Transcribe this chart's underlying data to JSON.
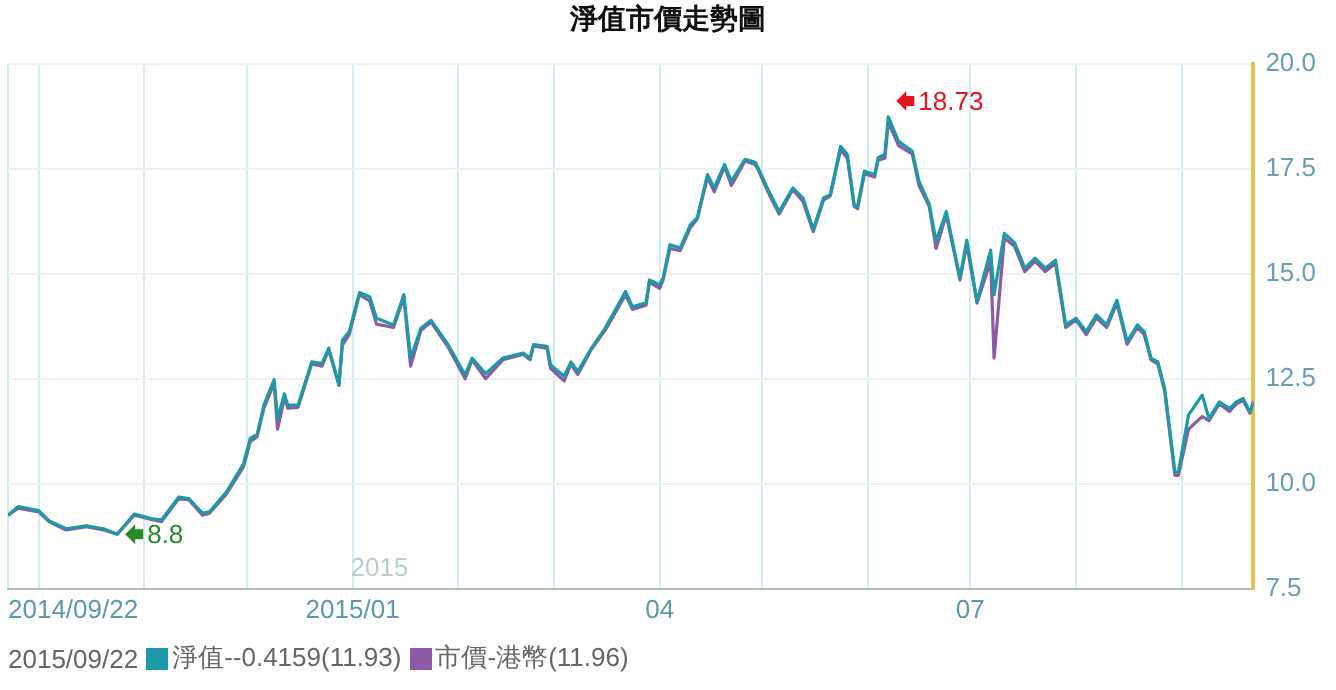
{
  "chart_data": {
    "type": "line",
    "title": "淨值市價走勢圖",
    "legend_title": "2015/09/22",
    "legend": "bottom",
    "grid": true,
    "marker": "none",
    "line_style": "solid",
    "x": [
      "2014-09-22",
      "2014-09-25",
      "2014-10-01",
      "2014-10-04",
      "2014-10-09",
      "2014-10-15",
      "2014-10-20",
      "2014-10-24",
      "2014-10-29",
      "2014-11-03",
      "2014-11-06",
      "2014-11-11",
      "2014-11-14",
      "2014-11-18",
      "2014-11-20",
      "2014-11-25",
      "2014-11-30",
      "2014-12-02",
      "2014-12-04",
      "2014-12-06",
      "2014-12-09",
      "2014-12-10",
      "2014-12-12",
      "2014-12-13",
      "2014-12-16",
      "2014-12-20",
      "2014-12-23",
      "2014-12-25",
      "2014-12-28",
      "2014-12-29",
      "2014-12-31",
      "2015-01-03",
      "2015-01-06",
      "2015-01-08",
      "2015-01-13",
      "2015-01-16",
      "2015-01-18",
      "2015-01-21",
      "2015-01-24",
      "2015-01-29",
      "2015-02-03",
      "2015-02-05",
      "2015-02-09",
      "2015-02-14",
      "2015-02-20",
      "2015-02-22",
      "2015-02-23",
      "2015-02-27",
      "2015-02-28",
      "2015-03-04",
      "2015-03-06",
      "2015-03-08",
      "2015-03-12",
      "2015-03-16",
      "2015-03-22",
      "2015-03-24",
      "2015-03-28",
      "2015-03-29",
      "2015-04-01",
      "2015-04-02",
      "2015-04-04",
      "2015-04-07",
      "2015-04-10",
      "2015-04-12",
      "2015-04-15",
      "2015-04-17",
      "2015-04-20",
      "2015-04-22",
      "2015-04-26",
      "2015-04-29",
      "2015-04-30",
      "2015-05-03",
      "2015-05-06",
      "2015-05-10",
      "2015-05-13",
      "2015-05-16",
      "2015-05-19",
      "2015-05-21",
      "2015-05-24",
      "2015-05-26",
      "2015-05-28",
      "2015-05-29",
      "2015-05-31",
      "2015-06-03",
      "2015-06-04",
      "2015-06-06",
      "2015-06-07",
      "2015-06-10",
      "2015-06-14",
      "2015-06-16",
      "2015-06-19",
      "2015-06-21",
      "2015-06-24",
      "2015-06-28",
      "2015-06-30",
      "2015-07-03",
      "2015-07-07",
      "2015-07-08",
      "2015-07-11",
      "2015-07-14",
      "2015-07-17",
      "2015-07-20",
      "2015-07-23",
      "2015-07-26",
      "2015-07-29",
      "2015-08-01",
      "2015-08-04",
      "2015-08-07",
      "2015-08-10",
      "2015-08-13",
      "2015-08-16",
      "2015-08-19",
      "2015-08-21",
      "2015-08-23",
      "2015-08-25",
      "2015-08-27",
      "2015-08-30",
      "2015-08-31",
      "2015-09-03",
      "2015-09-07",
      "2015-09-09",
      "2015-09-12",
      "2015-09-15",
      "2015-09-17",
      "2015-09-19",
      "2015-09-21",
      "2015-09-22"
    ],
    "series": [
      {
        "name": "淨值--0.4159(11.93)",
        "color": "#1e9aa6",
        "values": [
          9.25,
          9.46,
          9.36,
          9.12,
          8.93,
          9.0,
          8.93,
          8.8,
          9.28,
          9.17,
          9.14,
          9.68,
          9.65,
          9.3,
          9.33,
          9.8,
          10.47,
          11.08,
          11.17,
          11.87,
          12.48,
          11.55,
          12.14,
          11.87,
          11.87,
          12.9,
          12.86,
          13.23,
          12.35,
          13.42,
          13.62,
          14.55,
          14.45,
          13.94,
          13.78,
          14.5,
          12.99,
          13.7,
          13.89,
          13.31,
          12.59,
          12.99,
          12.62,
          12.99,
          13.11,
          12.99,
          13.31,
          13.27,
          12.83,
          12.56,
          12.9,
          12.67,
          13.23,
          13.7,
          14.58,
          14.21,
          14.31,
          14.85,
          14.74,
          14.9,
          15.69,
          15.61,
          16.17,
          16.33,
          17.36,
          17.04,
          17.6,
          17.2,
          17.72,
          17.65,
          17.49,
          16.96,
          16.48,
          17.04,
          16.8,
          16.05,
          16.8,
          16.88,
          18.03,
          17.84,
          16.65,
          16.6,
          17.44,
          17.36,
          17.76,
          17.84,
          18.73,
          18.15,
          17.92,
          17.2,
          16.65,
          15.77,
          16.48,
          14.9,
          15.8,
          14.34,
          15.56,
          14.5,
          15.96,
          15.74,
          15.13,
          15.37,
          15.13,
          15.32,
          13.78,
          13.94,
          13.62,
          14.02,
          13.78,
          14.37,
          13.38,
          13.78,
          13.62,
          12.99,
          12.9,
          12.27,
          10.28,
          10.28,
          11.64,
          12.11,
          11.55,
          11.95,
          11.79,
          11.95,
          12.03,
          11.7,
          11.93
        ]
      },
      {
        "name": "市價-港幣(11.96)",
        "color": "#8d5aa6",
        "values": [
          9.25,
          9.42,
          9.33,
          9.1,
          8.9,
          8.98,
          8.9,
          8.8,
          9.25,
          9.15,
          9.1,
          9.64,
          9.62,
          9.25,
          9.3,
          9.75,
          10.4,
          11.0,
          11.12,
          11.8,
          12.4,
          11.3,
          12.05,
          11.8,
          11.82,
          12.85,
          12.8,
          13.18,
          12.35,
          13.3,
          13.55,
          14.5,
          14.35,
          13.8,
          13.72,
          14.45,
          12.8,
          13.65,
          13.85,
          13.25,
          12.5,
          12.95,
          12.5,
          12.95,
          13.08,
          12.95,
          13.28,
          13.22,
          12.75,
          12.45,
          12.85,
          12.6,
          13.2,
          13.65,
          14.5,
          14.15,
          14.25,
          14.8,
          14.65,
          14.85,
          15.6,
          15.55,
          16.1,
          16.3,
          17.3,
          16.95,
          17.55,
          17.1,
          17.68,
          17.6,
          17.45,
          16.9,
          16.42,
          17.0,
          16.72,
          16.0,
          16.75,
          16.85,
          17.95,
          17.75,
          16.6,
          16.55,
          17.38,
          17.3,
          17.7,
          17.75,
          18.6,
          18.05,
          17.85,
          17.1,
          16.6,
          15.6,
          16.4,
          14.85,
          15.7,
          14.3,
          15.3,
          12.99,
          15.85,
          15.65,
          15.05,
          15.3,
          15.05,
          15.25,
          13.72,
          13.9,
          13.55,
          13.95,
          13.72,
          14.3,
          13.32,
          13.72,
          13.55,
          12.95,
          12.85,
          12.2,
          10.2,
          10.2,
          11.3,
          11.6,
          11.5,
          11.9,
          11.72,
          11.9,
          11.98,
          11.68,
          11.96
        ]
      }
    ],
    "xlim": [
      "2014-09-22",
      "2015-09-22"
    ],
    "xticks": [
      {
        "value": "2014-09-22",
        "label": "2014/09/22"
      },
      {
        "value": "2014-10-01",
        "label": null
      },
      {
        "value": "2014-11-01",
        "label": null
      },
      {
        "value": "2014-12-01",
        "label": null
      },
      {
        "value": "2015-01-01",
        "label": "2015/01"
      },
      {
        "value": "2015-02-01",
        "label": null
      },
      {
        "value": "2015-03-01",
        "label": null
      },
      {
        "value": "2015-04-01",
        "label": "04"
      },
      {
        "value": "2015-05-01",
        "label": null
      },
      {
        "value": "2015-06-01",
        "label": null
      },
      {
        "value": "2015-07-01",
        "label": "07"
      },
      {
        "value": "2015-08-01",
        "label": null
      },
      {
        "value": "2015-09-01",
        "label": null
      }
    ],
    "ylim": [
      7.5,
      20
    ],
    "yticks": [
      7.5,
      {
        "value": 10,
        "label": "10.0"
      },
      12.5,
      {
        "value": 15,
        "label": "15.0"
      },
      17.5,
      {
        "value": 20,
        "label": "20.0"
      }
    ],
    "annotations": [
      {
        "text": "18.73",
        "x": "2015-06-07",
        "y": 18.73
      },
      {
        "text": "8.8",
        "x": "2014-10-24",
        "y": 8.8
      },
      "2015"
    ]
  }
}
